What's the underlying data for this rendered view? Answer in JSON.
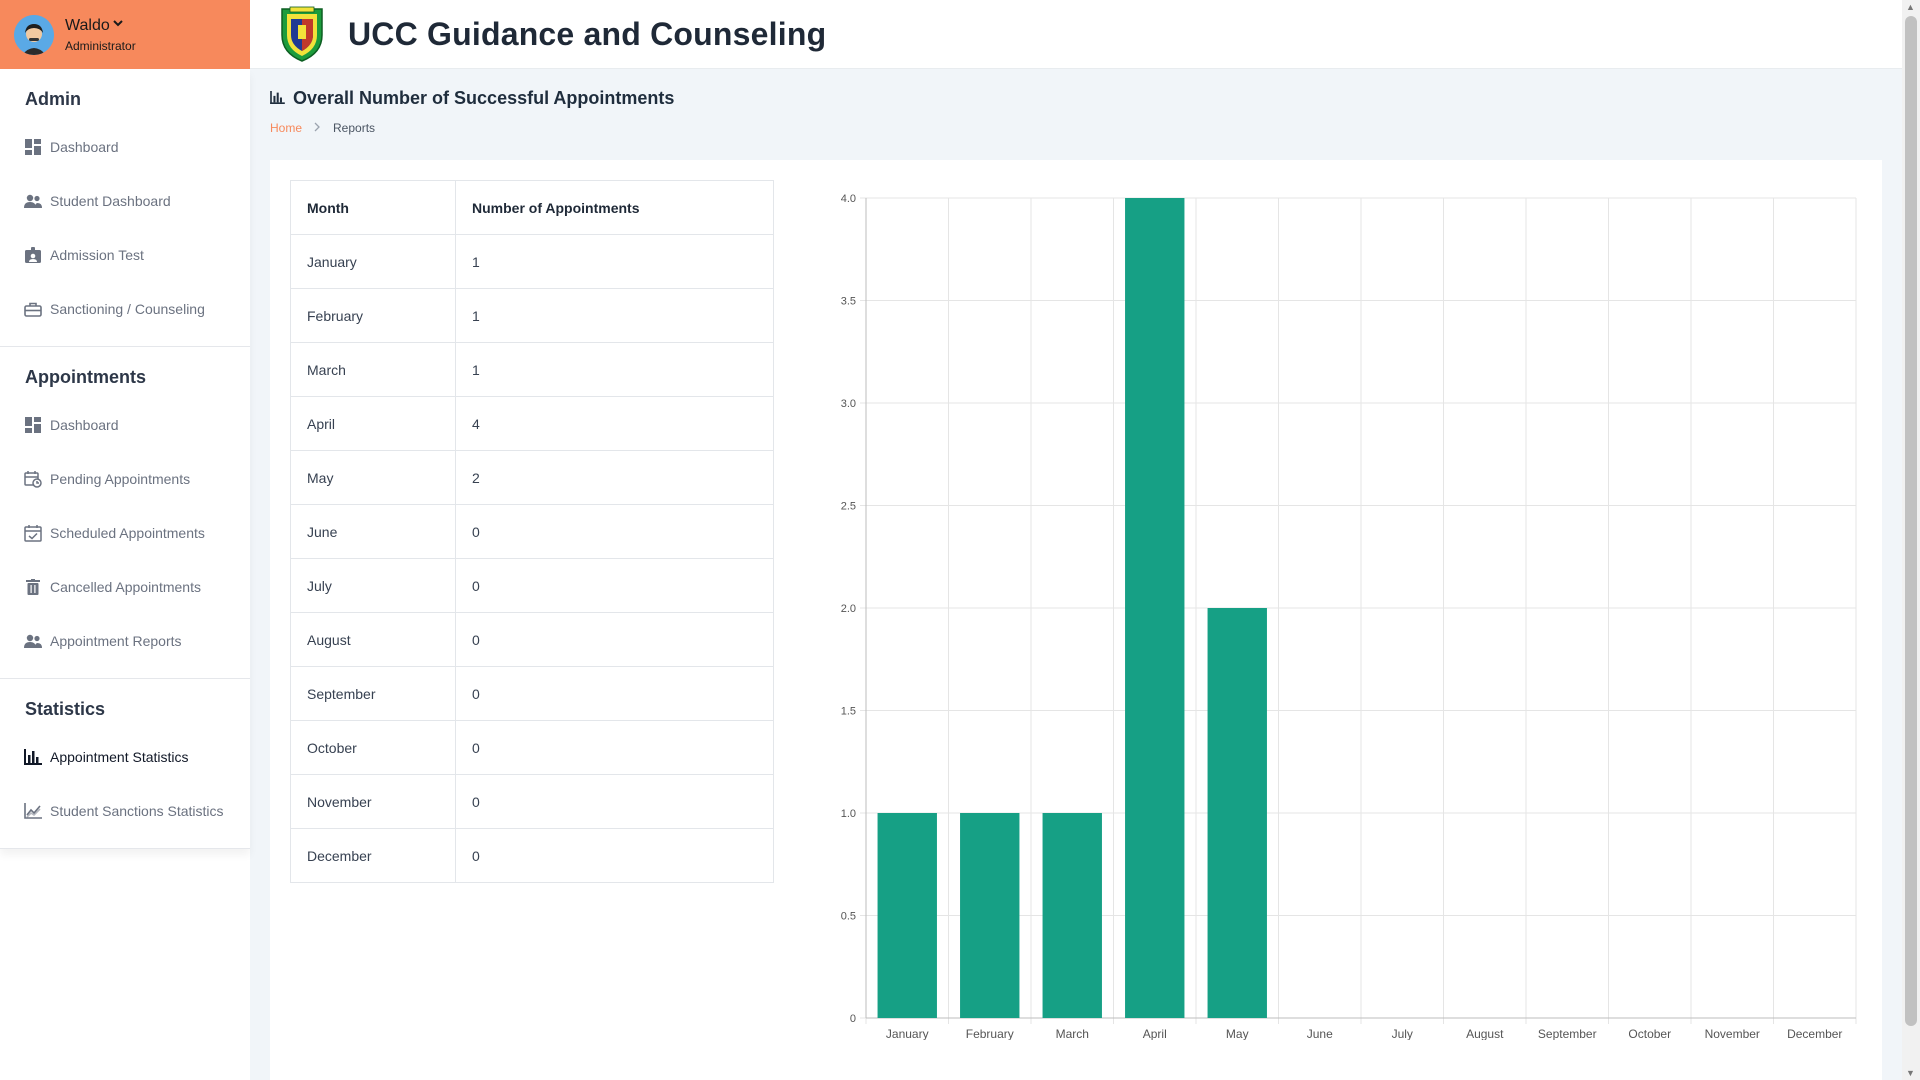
{
  "user": {
    "name": "Waldo",
    "role": "Administrator"
  },
  "app_title": "UCC Guidance and Counseling",
  "sidebar": {
    "sections": [
      {
        "title": "Admin",
        "items": [
          {
            "label": "Dashboard",
            "icon": "dashboard-icon"
          },
          {
            "label": "Student Dashboard",
            "icon": "users-icon"
          },
          {
            "label": "Admission Test",
            "icon": "id-badge-icon"
          },
          {
            "label": "Sanctioning / Counseling",
            "icon": "briefcase-icon"
          }
        ]
      },
      {
        "title": "Appointments",
        "items": [
          {
            "label": "Dashboard",
            "icon": "dashboard-icon"
          },
          {
            "label": "Pending Appointments",
            "icon": "calendar-clock-icon"
          },
          {
            "label": "Scheduled Appointments",
            "icon": "calendar-check-icon"
          },
          {
            "label": "Cancelled Appointments",
            "icon": "trash-icon"
          },
          {
            "label": "Appointment Reports",
            "icon": "users-icon"
          }
        ]
      },
      {
        "title": "Statistics",
        "items": [
          {
            "label": "Appointment Statistics",
            "icon": "bar-chart-icon",
            "active": true
          },
          {
            "label": "Student Sanctions Statistics",
            "icon": "line-chart-icon"
          }
        ]
      }
    ]
  },
  "page": {
    "title": "Overall Number of Successful Appointments",
    "breadcrumb": {
      "home": "Home",
      "current": "Reports"
    }
  },
  "table": {
    "headers": [
      "Month",
      "Number of Appointments"
    ],
    "rows": [
      [
        "January",
        "1"
      ],
      [
        "February",
        "1"
      ],
      [
        "March",
        "1"
      ],
      [
        "April",
        "4"
      ],
      [
        "May",
        "2"
      ],
      [
        "June",
        "0"
      ],
      [
        "July",
        "0"
      ],
      [
        "August",
        "0"
      ],
      [
        "September",
        "0"
      ],
      [
        "October",
        "0"
      ],
      [
        "November",
        "0"
      ],
      [
        "December",
        "0"
      ]
    ]
  },
  "chart_data": {
    "type": "bar",
    "categories": [
      "January",
      "February",
      "March",
      "April",
      "May",
      "June",
      "July",
      "August",
      "September",
      "October",
      "November",
      "December"
    ],
    "values": [
      1,
      1,
      1,
      4,
      2,
      0,
      0,
      0,
      0,
      0,
      0,
      0
    ],
    "yticks": [
      "0",
      "0.5",
      "1.0",
      "1.5",
      "2.0",
      "2.5",
      "3.0",
      "3.5",
      "4.0"
    ],
    "ylim": [
      0,
      4
    ],
    "grid": true,
    "bar_color": "#16a085"
  },
  "colors": {
    "accent": "#f7895c",
    "bar": "#16a085"
  }
}
